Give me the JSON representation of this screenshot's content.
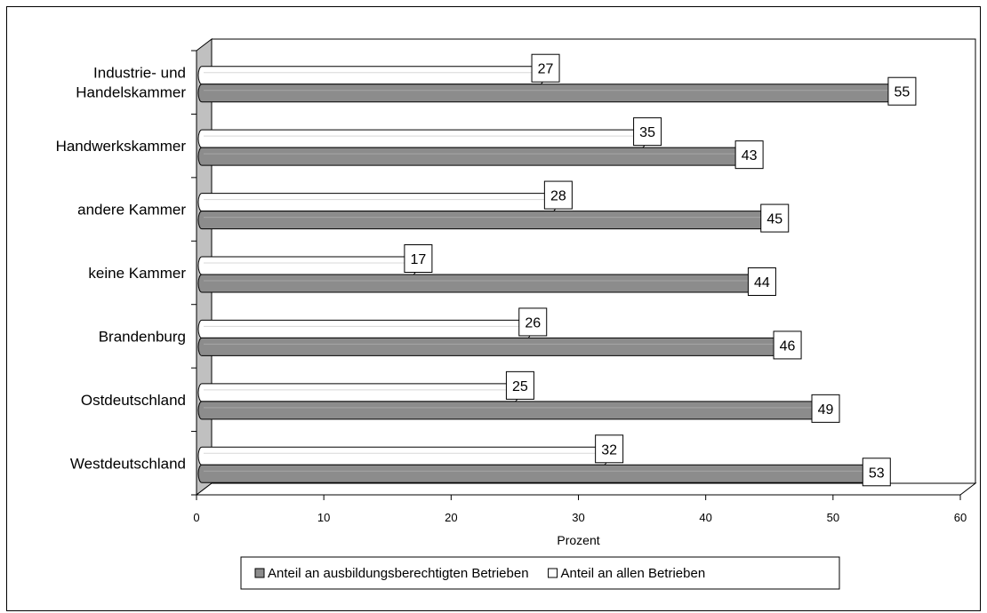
{
  "chart_data": {
    "type": "bar",
    "orientation": "horizontal",
    "categories": [
      "Industrie- und Handelskammer",
      "Handwerkskammer",
      "andere Kammer",
      "keine Kammer",
      "Brandenburg",
      "Ostdeutschland",
      "Westdeutschland"
    ],
    "category_lines": [
      [
        "Industrie- und",
        "Handelskammer"
      ],
      [
        "Handwerkskammer"
      ],
      [
        "andere Kammer"
      ],
      [
        "keine Kammer"
      ],
      [
        "Brandenburg"
      ],
      [
        "Ostdeutschland"
      ],
      [
        "Westdeutschland"
      ]
    ],
    "series": [
      {
        "name": "Anteil an allen Betrieben",
        "values": [
          27,
          35,
          28,
          17,
          26,
          25,
          32
        ],
        "color": "#ffffff"
      },
      {
        "name": "Anteil an ausbildungsberechtigten Betrieben",
        "values": [
          55,
          43,
          45,
          44,
          46,
          49,
          53
        ],
        "color": "#8c8c8c"
      }
    ],
    "legend_order": [
      1,
      0
    ],
    "xlabel": "Prozent",
    "xlim": [
      0,
      60
    ],
    "xticks": [
      0,
      10,
      20,
      30,
      40,
      50,
      60
    ],
    "legend_position": "bottom",
    "grid": false,
    "data_labels": true,
    "wall_color": "#c0c0c0"
  }
}
